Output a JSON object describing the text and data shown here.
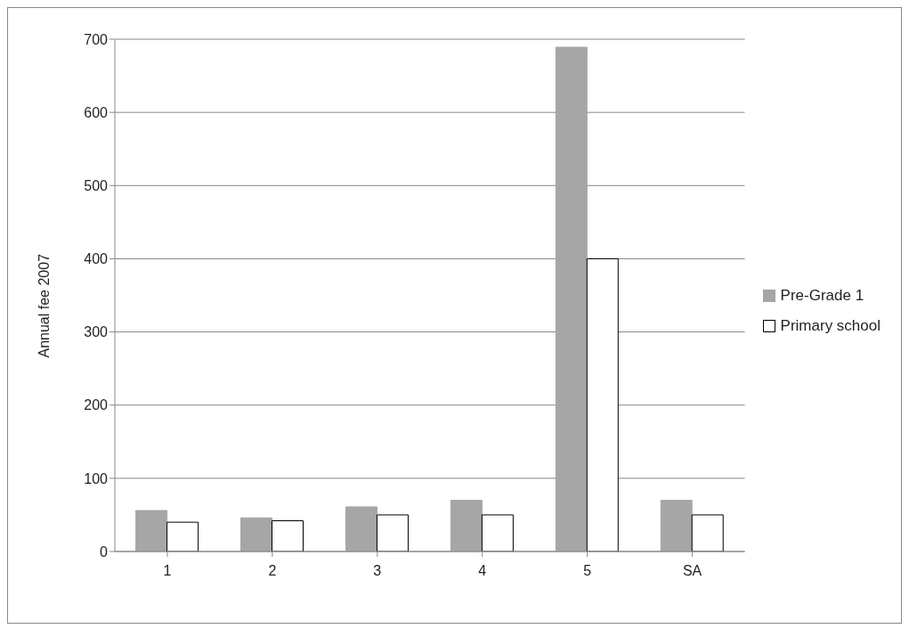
{
  "chart_data": {
    "type": "bar",
    "ylabel": "Annual fee 2007",
    "categories": [
      "1",
      "2",
      "3",
      "4",
      "5",
      "SA"
    ],
    "series": [
      {
        "name": "Pre-Grade 1",
        "color": "#a6a6a6",
        "values": [
          56,
          46,
          61,
          70,
          689,
          70
        ]
      },
      {
        "name": "Primary school",
        "color": "#ffffff",
        "values": [
          40,
          42,
          50,
          50,
          400,
          50
        ]
      }
    ],
    "ylim": [
      0,
      700
    ],
    "yticks": [
      0,
      100,
      200,
      300,
      400,
      500,
      600,
      700
    ],
    "grid": "y",
    "legend": "right"
  }
}
